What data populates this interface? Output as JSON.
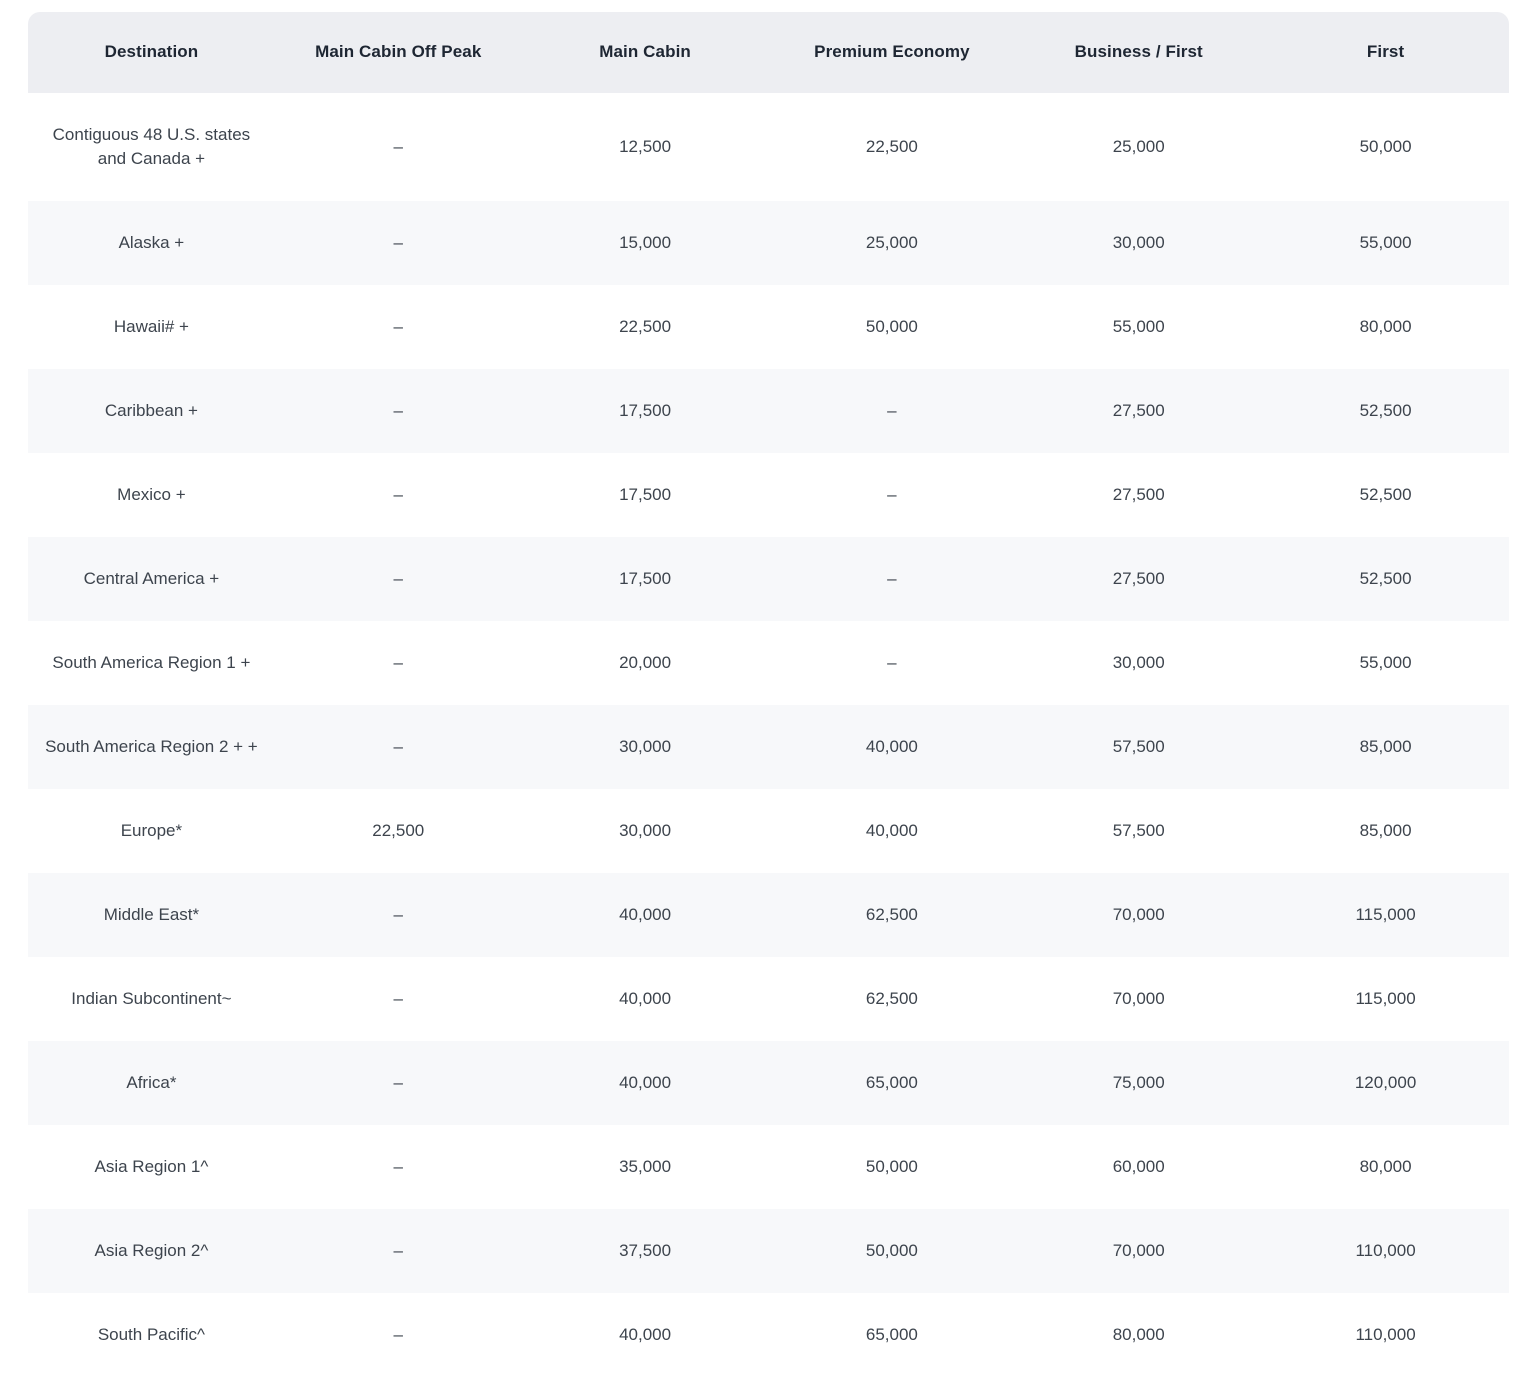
{
  "colors": {
    "header_bg": "#edeef2",
    "stripe_bg": "#f7f8fa",
    "header_text": "#1e2633",
    "cell_text": "#3d444d",
    "page_bg": "#ffffff"
  },
  "table": {
    "columns": [
      {
        "label": "Destination"
      },
      {
        "label": "Main Cabin Off Peak"
      },
      {
        "label": "Main Cabin"
      },
      {
        "label": "Premium Economy"
      },
      {
        "label": "Business / First"
      },
      {
        "label": "First"
      }
    ],
    "empty_marker": "–",
    "rows": [
      {
        "destination": "Contiguous 48 U.S. states and Canada +",
        "values": [
          "–",
          "12,500",
          "22,500",
          "25,000",
          "50,000"
        ]
      },
      {
        "destination": "Alaska +",
        "values": [
          "–",
          "15,000",
          "25,000",
          "30,000",
          "55,000"
        ]
      },
      {
        "destination": "Hawaii# +",
        "values": [
          "–",
          "22,500",
          "50,000",
          "55,000",
          "80,000"
        ]
      },
      {
        "destination": "Caribbean +",
        "values": [
          "–",
          "17,500",
          "–",
          "27,500",
          "52,500"
        ]
      },
      {
        "destination": "Mexico +",
        "values": [
          "–",
          "17,500",
          "–",
          "27,500",
          "52,500"
        ]
      },
      {
        "destination": "Central America +",
        "values": [
          "–",
          "17,500",
          "–",
          "27,500",
          "52,500"
        ]
      },
      {
        "destination": "South America Region 1 +",
        "values": [
          "–",
          "20,000",
          "–",
          "30,000",
          "55,000"
        ]
      },
      {
        "destination": "South America Region 2 + +",
        "values": [
          "–",
          "30,000",
          "40,000",
          "57,500",
          "85,000"
        ]
      },
      {
        "destination": "Europe*",
        "values": [
          "22,500",
          "30,000",
          "40,000",
          "57,500",
          "85,000"
        ]
      },
      {
        "destination": "Middle East*",
        "values": [
          "–",
          "40,000",
          "62,500",
          "70,000",
          "115,000"
        ]
      },
      {
        "destination": "Indian Subcontinent~",
        "values": [
          "–",
          "40,000",
          "62,500",
          "70,000",
          "115,000"
        ]
      },
      {
        "destination": "Africa*",
        "values": [
          "–",
          "40,000",
          "65,000",
          "75,000",
          "120,000"
        ]
      },
      {
        "destination": "Asia Region 1^",
        "values": [
          "–",
          "35,000",
          "50,000",
          "60,000",
          "80,000"
        ]
      },
      {
        "destination": "Asia Region 2^",
        "values": [
          "–",
          "37,500",
          "50,000",
          "70,000",
          "110,000"
        ]
      },
      {
        "destination": "South Pacific^",
        "values": [
          "–",
          "40,000",
          "65,000",
          "80,000",
          "110,000"
        ]
      }
    ]
  }
}
